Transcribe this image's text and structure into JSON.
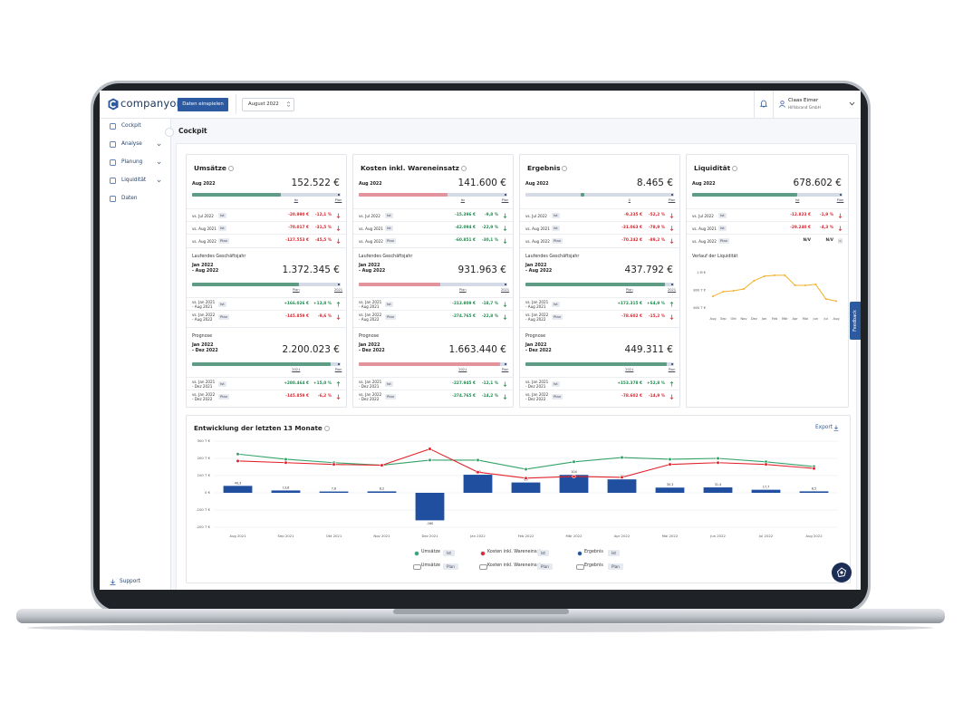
{
  "header": {
    "logo": "companyon",
    "import_button": "Daten einspielen",
    "period": "August 2022",
    "user_name": "Claas Eimer",
    "user_company": "Hilfsbrand GmbH"
  },
  "sidebar": {
    "items": [
      "Cockpit",
      "Analyse",
      "Planung",
      "Liquidität",
      "Daten"
    ],
    "support": "Support"
  },
  "page_title": "Cockpit",
  "feedback": "Feedback",
  "cards": [
    {
      "title": "Umsätze",
      "bar_color": "#5e9c86",
      "current": {
        "period": [
          "Aug 2022"
        ],
        "value": "152.522 €",
        "scale": [
          "Ist",
          "Plan"
        ],
        "rows": [
          {
            "label": [
              "vs. Jul 2022"
            ],
            "tag": "Ist",
            "delta": "-20.990 €",
            "pct": "-12,1 %",
            "tone": "bad",
            "trend": "down"
          },
          {
            "label": [
              "vs. Aug 2021"
            ],
            "tag": "Ist",
            "delta": "-70.017 €",
            "pct": "-31,5 %",
            "tone": "bad",
            "trend": "down"
          },
          {
            "label": [
              "vs. Aug 2022"
            ],
            "tag": "Plan",
            "delta": "-127.553 €",
            "pct": "-45,5 %",
            "tone": "bad",
            "trend": "down"
          }
        ]
      },
      "ytd": {
        "heading": "Laufendes Geschäftsjahr",
        "period": [
          "Jan 2022",
          "- Aug 2022"
        ],
        "value": "1.372.345 €",
        "scale": [
          "Plan",
          "2021"
        ],
        "rows": [
          {
            "label": [
              "vs. Jan 2021",
              "- Aug 2021"
            ],
            "tag": "Ist",
            "delta": "+166.026 €",
            "pct": "+13,8 %",
            "tone": "good",
            "trend": "up"
          },
          {
            "label": [
              "vs. Jan 2022",
              "- Aug 2022"
            ],
            "tag": "Plan",
            "delta": "-145.859 €",
            "pct": "-9,6 %",
            "tone": "bad",
            "trend": "down"
          }
        ]
      },
      "forecast": {
        "heading": "Prognose",
        "period": [
          "Jan 2022",
          "- Dez 2022"
        ],
        "value": "2.200.023 €",
        "scale": [
          "2021",
          "Plan"
        ],
        "rows": [
          {
            "label": [
              "vs. Jan 2021",
              "- Dez 2021"
            ],
            "tag": "Ist",
            "delta": "+280.464 €",
            "pct": "+15,0 %",
            "tone": "good",
            "trend": "up"
          },
          {
            "label": [
              "vs. Jan 2022",
              "- Dez 2022"
            ],
            "tag": "Plan",
            "delta": "-145.859 €",
            "pct": "-6,2 %",
            "tone": "bad",
            "trend": "down"
          }
        ]
      }
    },
    {
      "title": "Kosten inkl. Wareneinsatz",
      "bar_color": "#e3939b",
      "current": {
        "period": [
          "Aug 2022"
        ],
        "value": "141.600 €",
        "scale": [
          "Ist",
          "Plan"
        ],
        "rows": [
          {
            "label": [
              "vs. Jul 2022"
            ],
            "tag": "Ist",
            "delta": "-15.396 €",
            "pct": "-9,8 %",
            "tone": "good",
            "trend": "down"
          },
          {
            "label": [
              "vs. Aug 2021"
            ],
            "tag": "Ist",
            "delta": "-42.094 €",
            "pct": "-22,9 %",
            "tone": "good",
            "trend": "down"
          },
          {
            "label": [
              "vs. Aug 2022"
            ],
            "tag": "Plan",
            "delta": "-60.851 €",
            "pct": "-30,1 %",
            "tone": "good",
            "trend": "down"
          }
        ]
      },
      "ytd": {
        "heading": "Laufendes Geschäftsjahr",
        "period": [
          "Jan 2022",
          "- Aug 2022"
        ],
        "value": "931.963 €",
        "scale": [
          "Plan",
          "2021"
        ],
        "rows": [
          {
            "label": [
              "vs. Jan 2021",
              "- Aug 2021"
            ],
            "tag": "Ist",
            "delta": "-213.809 €",
            "pct": "-18,7 %",
            "tone": "good",
            "trend": "down"
          },
          {
            "label": [
              "vs. Jan 2022",
              "- Aug 2022"
            ],
            "tag": "Plan",
            "delta": "-274.765 €",
            "pct": "-22,8 %",
            "tone": "good",
            "trend": "down"
          }
        ]
      },
      "forecast": {
        "heading": "Prognose",
        "period": [
          "Jan 2022",
          "- Dez 2022"
        ],
        "value": "1.663.440 €",
        "scale": [
          "2021",
          "Plan"
        ],
        "rows": [
          {
            "label": [
              "vs. Jan 2021",
              "- Dez 2021"
            ],
            "tag": "Ist",
            "delta": "-227.945 €",
            "pct": "-12,1 %",
            "tone": "good",
            "trend": "down"
          },
          {
            "label": [
              "vs. Jan 2022",
              "- Dez 2022"
            ],
            "tag": "Plan",
            "delta": "-274.765 €",
            "pct": "-14,2 %",
            "tone": "good",
            "trend": "down"
          }
        ]
      }
    },
    {
      "title": "Ergebnis",
      "bar_color": "#5e9c86",
      "current": {
        "period": [
          "Aug 2022"
        ],
        "value": "8.465 €",
        "scale": [
          "0",
          "Plan"
        ],
        "rows": [
          {
            "label": [
              "vs. Jul 2022"
            ],
            "tag": "Ist",
            "delta": "-9.235 €",
            "pct": "-52,2 %",
            "tone": "bad",
            "trend": "down"
          },
          {
            "label": [
              "vs. Aug 2021"
            ],
            "tag": "Ist",
            "delta": "-31.063 €",
            "pct": "-78,9 %",
            "tone": "bad",
            "trend": "down"
          },
          {
            "label": [
              "vs. Aug 2022"
            ],
            "tag": "Plan",
            "delta": "-70.242 €",
            "pct": "-89,2 %",
            "tone": "bad",
            "trend": "down"
          }
        ]
      },
      "ytd": {
        "heading": "Laufendes Geschäftsjahr",
        "period": [
          "Jan 2022",
          "- Aug 2022"
        ],
        "value": "437.792 €",
        "scale": [
          "Plan",
          "2021"
        ],
        "rows": [
          {
            "label": [
              "vs. Jan 2021",
              "- Aug 2021"
            ],
            "tag": "Ist",
            "delta": "+172.315 €",
            "pct": "+64,9 %",
            "tone": "good",
            "trend": "up"
          },
          {
            "label": [
              "vs. Jan 2022",
              "- Aug 2022"
            ],
            "tag": "Plan",
            "delta": "-78.602 €",
            "pct": "-15,2 %",
            "tone": "bad",
            "trend": "down"
          }
        ]
      },
      "forecast": {
        "heading": "Prognose",
        "period": [
          "Jan 2022",
          "- Dez 2022"
        ],
        "value": "449.311 €",
        "scale": [
          "2021",
          "Plan"
        ],
        "rows": [
          {
            "label": [
              "vs. Jan 2021",
              "- Dez 2021"
            ],
            "tag": "Ist",
            "delta": "+153.378 €",
            "pct": "+52,8 %",
            "tone": "good",
            "trend": "up"
          },
          {
            "label": [
              "vs. Jan 2022",
              "- Dez 2022"
            ],
            "tag": "Plan",
            "delta": "-78.602 €",
            "pct": "-14,9 %",
            "tone": "bad",
            "trend": "down"
          }
        ]
      }
    },
    {
      "title": "Liquidität",
      "bar_color": "#5e9c86",
      "history_title": "Verlauf der Liquidität",
      "current": {
        "period": [
          "Aug 2022"
        ],
        "value": "678.602 €",
        "scale": [
          "Ist",
          "Plan"
        ],
        "rows": [
          {
            "label": [
              "vs. Jul 2022"
            ],
            "tag": "Ist",
            "delta": "-12.823 €",
            "pct": "-1,9 %",
            "tone": "bad",
            "trend": "down"
          },
          {
            "label": [
              "vs. Aug 2021"
            ],
            "tag": "Ist",
            "delta": "-29.240 €",
            "pct": "-4,3 %",
            "tone": "bad",
            "trend": "down"
          },
          {
            "label": [
              "vs. Aug 2022"
            ],
            "tag": "Plan",
            "delta": "N/V",
            "pct": "N/V",
            "tone": "neutral",
            "trend": "flat"
          }
        ]
      }
    }
  ],
  "chart_data": [
    {
      "type": "line",
      "color": "#f2b02a",
      "categories": [
        "Aug",
        "Sep",
        "Okt",
        "Nov",
        "Dez",
        "Jan",
        "Feb",
        "Mär",
        "Apr",
        "Mai",
        "Jun",
        "Jul",
        "Aug"
      ],
      "values": [
        733000,
        785000,
        795000,
        815000,
        908000,
        960000,
        970000,
        970000,
        856000,
        856000,
        867000,
        703000,
        678602
      ],
      "ylim": [
        550000,
        1050000
      ],
      "yticks": [
        {
          "value": 1000000,
          "label": "1 M €"
        },
        {
          "value": 800000,
          "label": "800 T €"
        },
        {
          "value": 600000,
          "label": "600 T €"
        }
      ],
      "grid": false
    },
    {
      "type": "combo",
      "title": "Entwicklung der letzten 13 Monate",
      "export": "Export",
      "categories": [
        "Aug 2021",
        "Sep 2021",
        "Okt 2021",
        "Nov 2021",
        "Dez 2021",
        "Jan 2022",
        "Feb 2022",
        "Mär 2022",
        "Apr 2022",
        "Mai 2022",
        "Jun 2022",
        "Jul 2022",
        "Aug 2022"
      ],
      "series": [
        {
          "name": "Ergebnis",
          "mark": "bar",
          "color": "#1f4f9e",
          "tag": "Ist",
          "values": [
            40300,
            13600,
            7600,
            8200,
            -160000,
            105000,
            60000,
            104000,
            78000,
            30300,
            31400,
            17700,
            8465
          ],
          "value_labels": [
            "40,3",
            "13,6",
            "7,6",
            "8,2",
            "-160",
            "105",
            "60",
            "104",
            "78",
            "30,3",
            "31,4",
            "17,7",
            "8,5"
          ]
        },
        {
          "name": "Umsätze",
          "mark": "line",
          "color": "#35a36a",
          "tag": "Ist",
          "values": [
            225000,
            195000,
            175000,
            160000,
            190000,
            190000,
            137000,
            180000,
            205000,
            195000,
            200000,
            180000,
            152522
          ]
        },
        {
          "name": "Kosten inkl. Wareneinsatz",
          "mark": "line",
          "color": "#e2242c",
          "tag": "Ist",
          "values": [
            185000,
            175000,
            165000,
            160000,
            255000,
            120000,
            85000,
            95000,
            90000,
            165000,
            175000,
            165000,
            141600
          ]
        }
      ],
      "legend_order": [
        1,
        2,
        0
      ],
      "plan_legend": [
        {
          "name": "Umsätze",
          "tag": "Plan"
        },
        {
          "name": "Kosten inkl. Wareneinsatz",
          "tag": "Plan"
        },
        {
          "name": "Ergebnis",
          "tag": "Plan"
        }
      ],
      "ylim": [
        -200000,
        300000
      ],
      "yticks": [
        {
          "value": 300000,
          "label": "300 T €"
        },
        {
          "value": 200000,
          "label": "200 T €"
        },
        {
          "value": 100000,
          "label": "100 T €"
        },
        {
          "value": 0,
          "label": "0 €"
        },
        {
          "value": -100000,
          "label": "-100 T €"
        },
        {
          "value": -200000,
          "label": "-200 T €"
        }
      ],
      "grid": true
    }
  ]
}
